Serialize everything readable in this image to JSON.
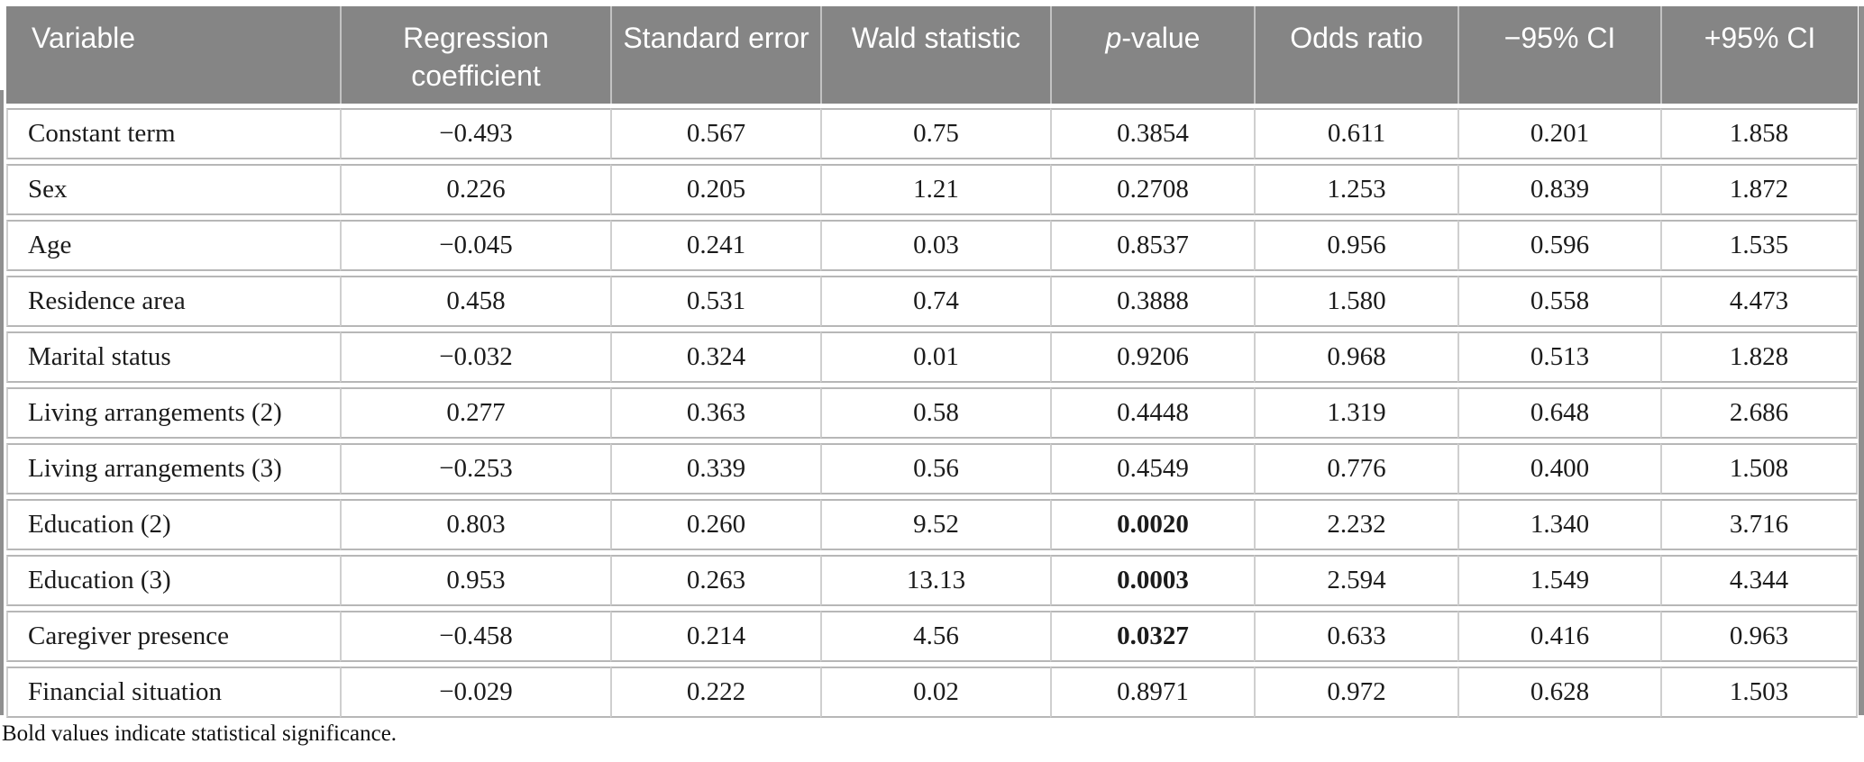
{
  "table": {
    "columns": [
      {
        "label": "Variable"
      },
      {
        "label": "Regression coefficient"
      },
      {
        "label": "Standard error"
      },
      {
        "label": "Wald statistic"
      },
      {
        "label": "p-value",
        "italic_head": "p",
        "tail": "-value"
      },
      {
        "label": "Odds ratio"
      },
      {
        "label": "−95% CI"
      },
      {
        "label": "+95% CI"
      }
    ],
    "significant_value_index": 3,
    "rows": [
      {
        "variable": "Constant term",
        "values": [
          "−0.493",
          "0.567",
          "0.75",
          "0.3854",
          "0.611",
          "0.201",
          "1.858"
        ],
        "significant": false
      },
      {
        "variable": "Sex",
        "values": [
          "0.226",
          "0.205",
          "1.21",
          "0.2708",
          "1.253",
          "0.839",
          "1.872"
        ],
        "significant": false
      },
      {
        "variable": "Age",
        "values": [
          "−0.045",
          "0.241",
          "0.03",
          "0.8537",
          "0.956",
          "0.596",
          "1.535"
        ],
        "significant": false
      },
      {
        "variable": "Residence area",
        "values": [
          "0.458",
          "0.531",
          "0.74",
          "0.3888",
          "1.580",
          "0.558",
          "4.473"
        ],
        "significant": false
      },
      {
        "variable": "Marital status",
        "values": [
          "−0.032",
          "0.324",
          "0.01",
          "0.9206",
          "0.968",
          "0.513",
          "1.828"
        ],
        "significant": false
      },
      {
        "variable": "Living arrangements (2)",
        "values": [
          "0.277",
          "0.363",
          "0.58",
          "0.4448",
          "1.319",
          "0.648",
          "2.686"
        ],
        "significant": false
      },
      {
        "variable": "Living arrangements (3)",
        "values": [
          "−0.253",
          "0.339",
          "0.56",
          "0.4549",
          "0.776",
          "0.400",
          "1.508"
        ],
        "significant": false
      },
      {
        "variable": "Education (2)",
        "values": [
          "0.803",
          "0.260",
          "9.52",
          "0.0020",
          "2.232",
          "1.340",
          "3.716"
        ],
        "significant": true
      },
      {
        "variable": "Education (3)",
        "values": [
          "0.953",
          "0.263",
          "13.13",
          "0.0003",
          "2.594",
          "1.549",
          "4.344"
        ],
        "significant": true
      },
      {
        "variable": "Caregiver presence",
        "values": [
          "−0.458",
          "0.214",
          "4.56",
          "0.0327",
          "0.633",
          "0.416",
          "0.963"
        ],
        "significant": true
      },
      {
        "variable": "Financial situation",
        "values": [
          "−0.029",
          "0.222",
          "0.02",
          "0.8971",
          "0.972",
          "0.628",
          "1.503"
        ],
        "significant": false
      }
    ],
    "footnote": "Bold values indicate statistical significance."
  },
  "colors": {
    "header_bg": "#858585",
    "header_text": "#ffffff",
    "row_rule": "#b7b7b7",
    "cell_border": "#cfcfcf",
    "rail": "#8f8f8f"
  }
}
